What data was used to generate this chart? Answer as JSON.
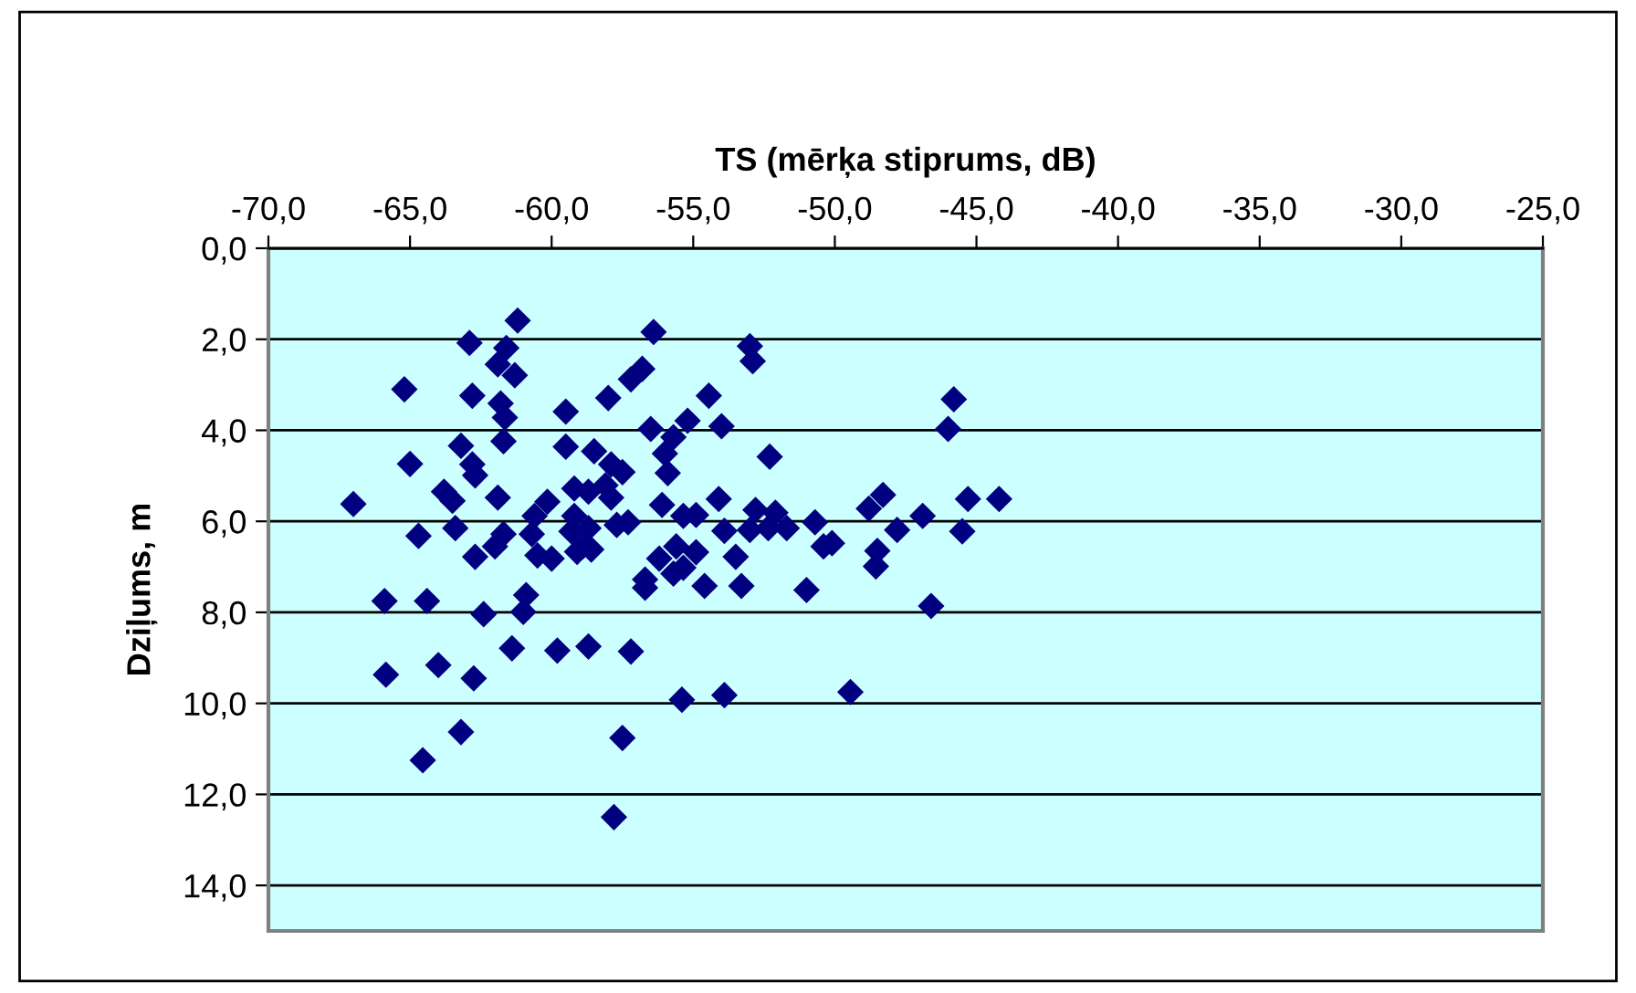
{
  "chart_data": {
    "type": "scatter",
    "xlabel": "TS (mērķa stiprums, dB)",
    "ylabel": "Dziļums, m",
    "xlim": [
      -70,
      -25
    ],
    "ylim": [
      15,
      0
    ],
    "xticks": [
      {
        "value": -70,
        "label": "-70,0"
      },
      {
        "value": -65,
        "label": "-65,0"
      },
      {
        "value": -60,
        "label": "-60,0"
      },
      {
        "value": -55,
        "label": "-55,0"
      },
      {
        "value": -50,
        "label": "-50,0"
      },
      {
        "value": -45,
        "label": "-45,0"
      },
      {
        "value": -40,
        "label": "-40,0"
      },
      {
        "value": -35,
        "label": "-35,0"
      },
      {
        "value": -30,
        "label": "-30,0"
      },
      {
        "value": -25,
        "label": "-25,0"
      }
    ],
    "yticks": [
      {
        "value": 0,
        "label": "0,0"
      },
      {
        "value": 2,
        "label": "2,0"
      },
      {
        "value": 4,
        "label": "4,0"
      },
      {
        "value": 6,
        "label": "6,0"
      },
      {
        "value": 8,
        "label": "8,0"
      },
      {
        "value": 10,
        "label": "10,0"
      },
      {
        "value": 12,
        "label": "12,0"
      },
      {
        "value": 14,
        "label": "14,0"
      }
    ],
    "grid": "y",
    "marker": "diamond",
    "legend": false,
    "series": [
      {
        "color": "#000080",
        "x": [
          -61.2,
          -62.9,
          -61.6,
          -61.9,
          -61.3,
          -56.4,
          -56.8,
          -57.2,
          -65.2,
          -62.8,
          -61.8,
          -61.65,
          -59.5,
          -58.0,
          -56.5,
          -55.7,
          -55.2,
          -63.2,
          -61.7,
          -59.5,
          -58.5,
          -56.0,
          -65.0,
          -62.8,
          -62.7,
          -57.9,
          -57.5,
          -55.9,
          -67.0,
          -63.8,
          -63.5,
          -61.9,
          -60.15,
          -59.2,
          -58.7,
          -58.1,
          -57.9,
          -56.1,
          -55.35,
          -64.7,
          -63.4,
          -62.7,
          -62.0,
          -61.7,
          -60.6,
          -60.7,
          -60.5,
          -60.0,
          -59.2,
          -59.3,
          -58.9,
          -58.6,
          -58.7,
          -57.7,
          -57.3,
          -56.2,
          -55.6,
          -55.35,
          -56.7,
          -53.0,
          -52.9,
          -54.45,
          -54.0,
          -45.8,
          -46.0,
          -52.3,
          -54.1,
          -54.9,
          -53.9,
          -52.8,
          -53.0,
          -52.1,
          -52.35,
          -51.7,
          -50.7,
          -50.4,
          -50.1,
          -48.8,
          -48.3,
          -47.8,
          -46.9,
          -45.3,
          -44.2,
          -45.5,
          -48.5,
          -48.55,
          -53.5,
          -59.1,
          -55.7,
          -56.7,
          -65.9,
          -64.4,
          -62.4,
          -60.9,
          -61.0,
          -61.4,
          -59.8,
          -58.7,
          -57.2,
          -65.85,
          -64.0,
          -62.75,
          -55.4,
          -63.2,
          -57.5,
          -64.55,
          -57.8,
          -54.9,
          -54.6,
          -53.3,
          -51.0,
          -46.6,
          -53.9,
          -49.45
        ],
        "values": [
          1.59,
          2.08,
          2.19,
          2.55,
          2.79,
          1.84,
          2.65,
          2.88,
          3.1,
          3.24,
          3.41,
          3.72,
          3.59,
          3.29,
          3.97,
          4.15,
          3.79,
          4.34,
          4.24,
          4.36,
          4.46,
          4.51,
          4.74,
          4.75,
          4.99,
          4.75,
          4.92,
          4.94,
          5.62,
          5.35,
          5.55,
          5.48,
          5.57,
          5.28,
          5.35,
          5.21,
          5.48,
          5.64,
          5.88,
          6.32,
          6.15,
          6.78,
          6.55,
          6.28,
          5.88,
          6.28,
          6.75,
          6.82,
          5.88,
          6.22,
          6.55,
          6.62,
          6.15,
          6.08,
          6.02,
          6.82,
          6.55,
          7.02,
          7.28,
          2.15,
          2.48,
          3.24,
          3.91,
          3.32,
          3.97,
          4.58,
          5.51,
          5.86,
          6.21,
          5.75,
          6.19,
          5.81,
          6.15,
          6.15,
          6.02,
          6.55,
          6.48,
          5.72,
          5.42,
          6.19,
          5.88,
          5.51,
          5.51,
          6.22,
          6.65,
          6.99,
          6.78,
          6.67,
          7.15,
          7.46,
          7.75,
          7.75,
          8.04,
          7.62,
          7.99,
          8.79,
          8.84,
          8.75,
          8.86,
          9.37,
          9.16,
          9.45,
          9.92,
          10.63,
          10.76,
          11.25,
          12.5,
          6.68,
          7.42,
          7.42,
          7.51,
          7.86,
          9.82,
          9.75
        ]
      }
    ]
  }
}
